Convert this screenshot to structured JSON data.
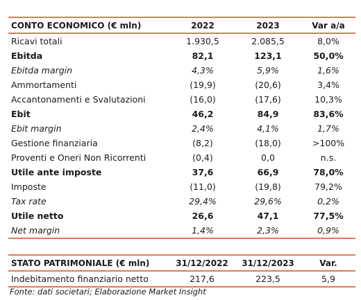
{
  "income_statement": {
    "header": [
      "CONTO ECONOMICO (€ mln)",
      "2022",
      "2023",
      "Var a/a"
    ],
    "rows": [
      {
        "label": "Ricavi totali",
        "v2022": "1.930,5",
        "v2023": "2.085,5",
        "var": "8,0%",
        "style": "normal"
      },
      {
        "label": "Ebitda",
        "v2022": "82,1",
        "v2023": "123,1",
        "var": "50,0%",
        "style": "bold"
      },
      {
        "label": "Ebitda margin",
        "v2022": "4,3%",
        "v2023": "5,9%",
        "var": "1,6%",
        "style": "italic"
      },
      {
        "label": "Ammortamenti",
        "v2022": "(19,9)",
        "v2023": "(20,6)",
        "var": "3,4%",
        "style": "normal"
      },
      {
        "label": "Accantonamenti e Svalutazioni",
        "v2022": "(16,0)",
        "v2023": "(17,6)",
        "var": "10,3%",
        "style": "normal"
      },
      {
        "label": "Ebit",
        "v2022": "46,2",
        "v2023": "84,9",
        "var": "83,6%",
        "style": "bold"
      },
      {
        "label": "Ebit margin",
        "v2022": "2,4%",
        "v2023": "4,1%",
        "var": "1,7%",
        "style": "italic"
      },
      {
        "label": "Gestione finanziaria",
        "v2022": "(8,2)",
        "v2023": "(18,0)",
        "var": ">100%",
        "style": "normal"
      },
      {
        "label": "Proventi e Oneri Non Ricorrenti",
        "v2022": "(0,4)",
        "v2023": "0,0",
        "var": "n.s.",
        "style": "normal"
      },
      {
        "label": "Utile ante imposte",
        "v2022": "37,6",
        "v2023": "66,9",
        "var": "78,0%",
        "style": "bold"
      },
      {
        "label": "Imposte",
        "v2022": "(11,0)",
        "v2023": "(19,8)",
        "var": "79,2%",
        "style": "normal"
      },
      {
        "label": "Tax rate",
        "v2022": "29,4%",
        "v2023": "29,6%",
        "var": "0,2%",
        "style": "italic"
      },
      {
        "label": "Utile netto",
        "v2022": "26,6",
        "v2023": "47,1",
        "var": "77,5%",
        "style": "bold"
      },
      {
        "label": "Net margin",
        "v2022": "1,4%",
        "v2023": "2,3%",
        "var": "0,9%",
        "style": "italic"
      }
    ]
  },
  "balance_sheet": {
    "header": [
      "STATO PATRIMONIALE (€ mln)",
      "31/12/2022",
      "31/12/2023",
      "Var."
    ],
    "rows": [
      {
        "label": "Indebitamento finanziario netto",
        "v2022": "217,6",
        "v2023": "223,5",
        "var": "5,9",
        "style": "normal"
      }
    ]
  },
  "source_note": "Fonte: dati societari; Elaborazione Market Insight",
  "accent_color": "#e07a57"
}
